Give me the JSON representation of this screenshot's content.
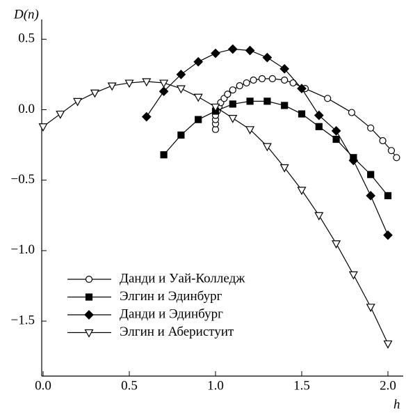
{
  "chart_data": {
    "type": "line",
    "xlabel": "h",
    "ylabel": "D(n)",
    "xlim": [
      0,
      2.08
    ],
    "ylim": [
      -1.89,
      0.63
    ],
    "xticks": [
      {
        "value": 0,
        "label": "0.0"
      },
      0.5,
      {
        "value": 1,
        "label": "1.0"
      },
      1.5,
      {
        "value": 2,
        "label": "2.0"
      }
    ],
    "yticks": [
      0.5,
      {
        "value": 0,
        "label": "0.0"
      },
      {
        "value": -0.5,
        "label": "−0.5"
      },
      {
        "value": -1,
        "label": "−1.0"
      },
      {
        "value": -1.5,
        "label": "−1.5"
      }
    ],
    "series": [
      {
        "name": "Данди и Уай-Колледж",
        "color": "#000000",
        "marker": "circle",
        "filled": false,
        "x": [
          1.0,
          1.0,
          1.0,
          1.0,
          1.01,
          1.02,
          1.03,
          1.05,
          1.07,
          1.1,
          1.14,
          1.18,
          1.22,
          1.27,
          1.33,
          1.4,
          1.45,
          1.52,
          1.65,
          1.79,
          1.9,
          1.97,
          2.02,
          2.05
        ],
        "values": [
          -0.14,
          -0.1,
          -0.07,
          -0.04,
          -0.01,
          0.02,
          0.05,
          0.08,
          0.11,
          0.14,
          0.17,
          0.19,
          0.21,
          0.22,
          0.22,
          0.21,
          0.19,
          0.15,
          0.08,
          -0.02,
          -0.13,
          -0.22,
          -0.29,
          -0.34
        ]
      },
      {
        "name": "Элгин и Эдинбург",
        "color": "#000000",
        "marker": "square",
        "filled": true,
        "x": [
          0.7,
          0.8,
          0.9,
          1.0,
          1.1,
          1.2,
          1.3,
          1.4,
          1.5,
          1.6,
          1.7,
          1.8,
          1.9,
          2.0
        ],
        "values": [
          -0.32,
          -0.18,
          -0.07,
          -0.01,
          0.04,
          0.06,
          0.06,
          0.03,
          -0.03,
          -0.12,
          -0.21,
          -0.34,
          -0.46,
          -0.61
        ]
      },
      {
        "name": "Данди и Эдинбург",
        "color": "#000000",
        "marker": "diamond",
        "filled": true,
        "x": [
          0.6,
          0.7,
          0.8,
          0.9,
          1.0,
          1.1,
          1.2,
          1.3,
          1.4,
          1.5,
          1.6,
          1.7,
          1.8,
          1.9,
          2.0
        ],
        "values": [
          -0.05,
          0.13,
          0.25,
          0.34,
          0.4,
          0.43,
          0.42,
          0.37,
          0.29,
          0.15,
          -0.04,
          -0.15,
          -0.36,
          -0.61,
          -0.89
        ]
      },
      {
        "name": "Элгин и Аберистуит",
        "color": "#000000",
        "marker": "triangle-down",
        "filled": false,
        "x": [
          0.0,
          0.1,
          0.2,
          0.3,
          0.4,
          0.5,
          0.6,
          0.7,
          0.8,
          0.9,
          1.0,
          1.1,
          1.2,
          1.3,
          1.4,
          1.5,
          1.6,
          1.7,
          1.8,
          1.9,
          2.0
        ],
        "values": [
          -0.12,
          -0.03,
          0.06,
          0.12,
          0.17,
          0.19,
          0.2,
          0.19,
          0.15,
          0.09,
          0.02,
          -0.06,
          -0.14,
          -0.26,
          -0.41,
          -0.57,
          -0.75,
          -0.95,
          -1.17,
          -1.4,
          -1.66
        ]
      }
    ]
  }
}
